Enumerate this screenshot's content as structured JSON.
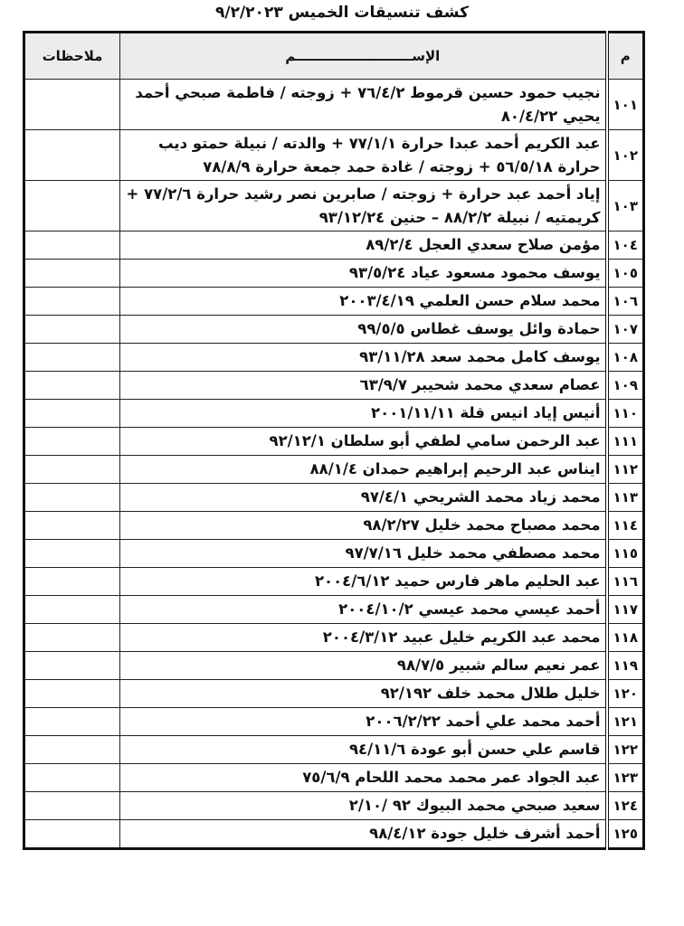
{
  "title": "كشف تنسيقات الخميس ٩/٢/٢٠٢٣",
  "headers": {
    "num": "م",
    "name": "الإســـــــــــــــــــــــــم",
    "notes": "ملاحظات"
  },
  "rows": [
    {
      "num": "١٠١",
      "name": "نجيب حمود حسين قرموط ٧٦/٤/٢ + زوجته / فاطمة صبحي أحمد يحيي ٨٠/٤/٢٢"
    },
    {
      "num": "١٠٢",
      "name": "عبد الكريم أحمد عبدا حرارة ٧٧/١/١ + والدته / نبيلة حمتو ديب حرارة ٥٦/٥/١٨ + زوجته / غادة حمد جمعة حرارة ٧٨/٨/٩"
    },
    {
      "num": "١٠٣",
      "name": "إياد أحمد عبد حرارة + زوجته / صابرين نصر رشيد حرارة ٧٧/٢/٦ + كريمتيه / نبيلة ٨٨/٢/٢ – حنين ٩٣/١٢/٢٤"
    },
    {
      "num": "١٠٤",
      "name": "مؤمن صلاح سعدي العجل ٨٩/٢/٤"
    },
    {
      "num": "١٠٥",
      "name": "يوسف محمود مسعود عياد ٩٣/٥/٢٤"
    },
    {
      "num": "١٠٦",
      "name": "محمد سلام حسن العلمي ٢٠٠٣/٤/١٩"
    },
    {
      "num": "١٠٧",
      "name": "حمادة وائل يوسف غطاس ٩٩/٥/٥"
    },
    {
      "num": "١٠٨",
      "name": "يوسف كامل محمد سعد ٩٣/١١/٢٨"
    },
    {
      "num": "١٠٩",
      "name": "عصام سعدي محمد شحيبر ٦٣/٩/٧"
    },
    {
      "num": "١١٠",
      "name": "أنيس إياد انيس قلة ٢٠٠١/١١/١١"
    },
    {
      "num": "١١١",
      "name": "عبد الرحمن سامي لطفي أبو سلطان ٩٢/١٢/١"
    },
    {
      "num": "١١٢",
      "name": "ايناس عبد الرحيم إبراهيم حمدان ٨٨/١/٤"
    },
    {
      "num": "١١٣",
      "name": "محمد زياد محمد الشريحي ٩٧/٤/١"
    },
    {
      "num": "١١٤",
      "name": "محمد مصباح محمد خليل ٩٨/٢/٢٧"
    },
    {
      "num": "١١٥",
      "name": "محمد مصطفي محمد خليل ٩٧/٧/١٦"
    },
    {
      "num": "١١٦",
      "name": "عبد الحليم ماهر فارس حميد ٢٠٠٤/٦/١٢"
    },
    {
      "num": "١١٧",
      "name": "أحمد عيسي محمد عيسي ٢٠٠٤/١٠/٢"
    },
    {
      "num": "١١٨",
      "name": "محمد عبد الكريم خليل عبيد ٢٠٠٤/٣/١٢"
    },
    {
      "num": "١١٩",
      "name": "عمر نعيم سالم شبير ٩٨/٧/٥"
    },
    {
      "num": "١٢٠",
      "name": "خليل طلال محمد خلف ٩٢/١٩٢"
    },
    {
      "num": "١٢١",
      "name": "أحمد محمد علي أحمد ٢٠٠٦/٢/٢٢"
    },
    {
      "num": "١٢٢",
      "name": "قاسم علي حسن أبو عودة ٩٤/١١/٦"
    },
    {
      "num": "١٢٣",
      "name": "عبد الجواد عمر محمد محمد اللحام ٧٥/٦/٩"
    },
    {
      "num": "١٢٤",
      "name": "سعيد صبحي محمد البيوك ٩٢ /٢/١٠"
    },
    {
      "num": "١٢٥",
      "name": "أحمد أشرف خليل جودة ٩٨/٤/١٢"
    }
  ]
}
